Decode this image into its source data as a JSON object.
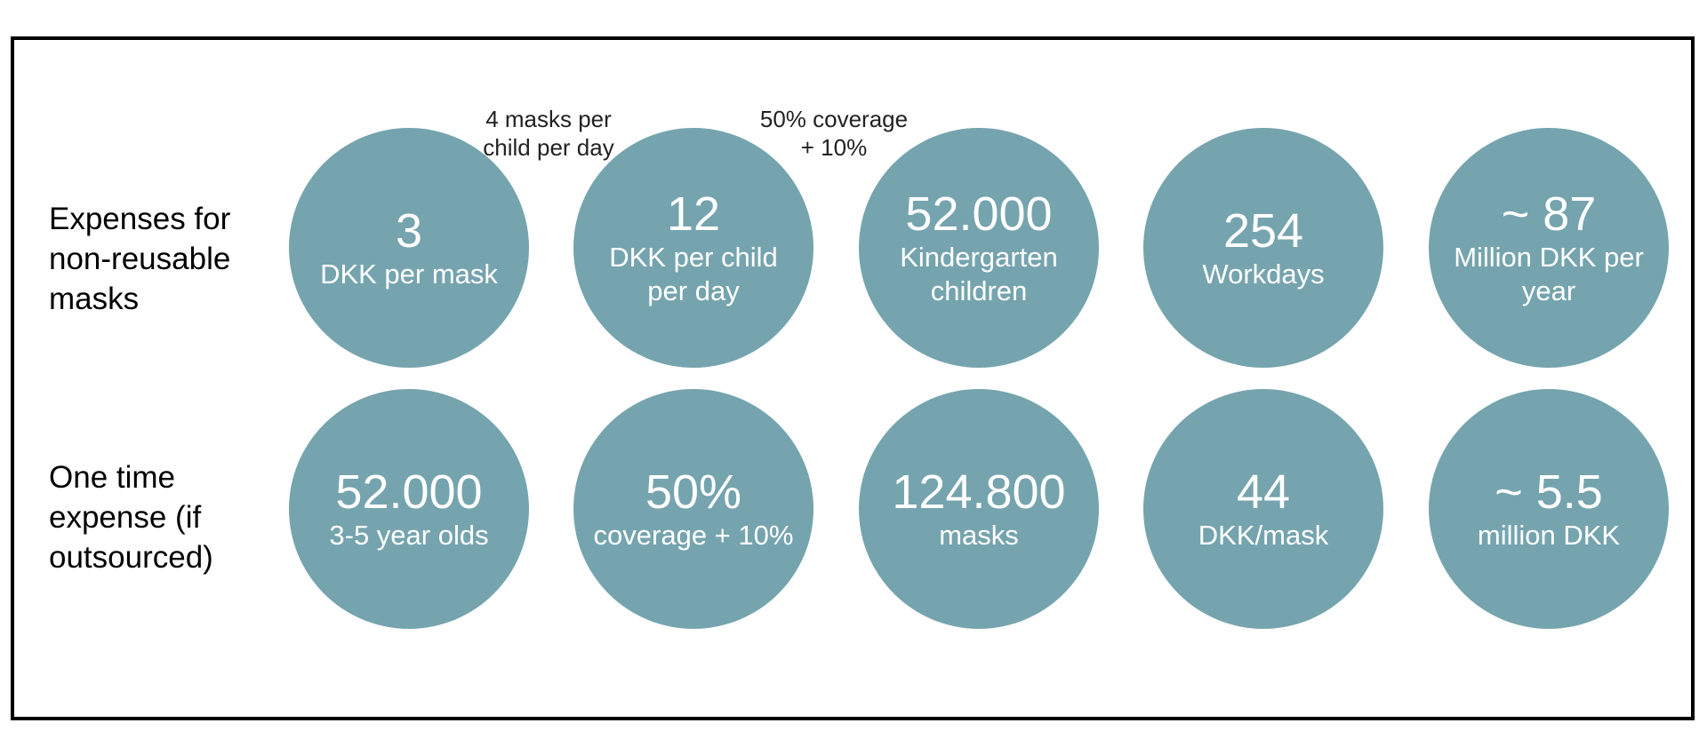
{
  "rows": [
    {
      "label": "Expenses for non-reusable masks",
      "circles": [
        {
          "value": "3",
          "desc": "DKK per mask"
        },
        {
          "value": "12",
          "desc": "DKK per child per day"
        },
        {
          "value": "52.000",
          "desc": "Kindergarten children"
        },
        {
          "value": "254",
          "desc": "Workdays"
        },
        {
          "value": "~ 87",
          "desc": "Million DKK per year"
        }
      ]
    },
    {
      "label": "One time expense (if outsourced)",
      "circles": [
        {
          "value": "52.000",
          "desc": "3-5 year olds"
        },
        {
          "value": "50%",
          "desc": "coverage + 10%"
        },
        {
          "value": "124.800",
          "desc": "masks"
        },
        {
          "value": "44",
          "desc": "DKK/mask"
        },
        {
          "value": "~ 5.5",
          "desc": "million DKK"
        }
      ]
    }
  ],
  "notes": [
    "4 masks per child per day",
    "50% coverage + 10%"
  ],
  "colors": {
    "circle": "#75a4ae",
    "circle_text": "#ffffff",
    "border": "#000000"
  }
}
